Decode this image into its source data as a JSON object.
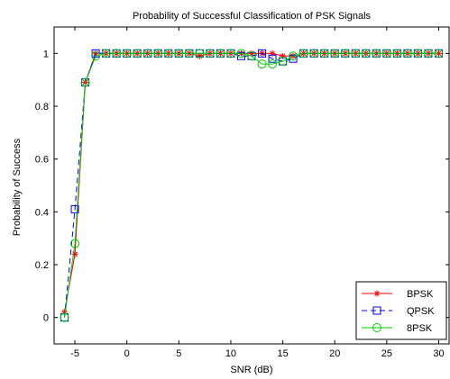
{
  "chart_data": {
    "type": "line",
    "title": "Probability of Successful Classification of PSK Signals",
    "xlabel": "SNR (dB)",
    "ylabel": "Probability of Success",
    "xlim": [
      -7,
      31
    ],
    "ylim": [
      -0.1,
      1.1
    ],
    "grid": false,
    "legend_position": "bottom-right",
    "x_ticks": [
      -5,
      0,
      5,
      10,
      15,
      20,
      25,
      30
    ],
    "y_ticks": [
      0,
      0.2,
      0.4,
      0.6,
      0.8,
      1
    ],
    "x": [
      -6,
      -5,
      -4,
      -3,
      -2,
      -1,
      0,
      1,
      2,
      3,
      4,
      5,
      6,
      7,
      8,
      9,
      10,
      11,
      12,
      13,
      14,
      15,
      16,
      17,
      18,
      19,
      20,
      21,
      22,
      23,
      24,
      25,
      26,
      27,
      28,
      29,
      30
    ],
    "series": [
      {
        "name": "BPSK",
        "color": "#ff0000",
        "dash": "solid",
        "marker": "asterisk",
        "values": [
          0.02,
          0.24,
          0.89,
          1,
          1,
          1,
          1,
          1,
          1,
          1,
          1,
          1,
          1,
          0.99,
          1,
          1,
          1,
          1,
          1,
          1,
          1,
          0.99,
          0.99,
          1,
          1,
          1,
          1,
          1,
          1,
          1,
          1,
          1,
          1,
          1,
          1,
          1,
          1
        ]
      },
      {
        "name": "QPSK",
        "color": "#0000ff",
        "dash": "dashed",
        "marker": "square",
        "values": [
          0.0,
          0.41,
          0.89,
          1,
          1,
          1,
          1,
          1,
          1,
          1,
          1,
          1,
          1,
          1,
          1,
          1,
          1,
          0.99,
          0.99,
          1,
          0.98,
          0.97,
          0.98,
          1,
          1,
          1,
          1,
          1,
          1,
          1,
          1,
          1,
          1,
          1,
          1,
          1,
          1
        ]
      },
      {
        "name": "8PSK",
        "color": "#00cc00",
        "dash": "solid",
        "marker": "circle",
        "values": [
          0.0,
          0.28,
          0.89,
          0.99,
          1,
          1,
          1,
          1,
          1,
          1,
          1,
          1,
          1,
          1,
          1,
          1,
          1,
          1,
          0.99,
          0.96,
          0.96,
          0.97,
          0.99,
          1,
          1,
          1,
          1,
          1,
          1,
          1,
          1,
          1,
          1,
          1,
          1,
          1,
          1
        ]
      }
    ]
  }
}
